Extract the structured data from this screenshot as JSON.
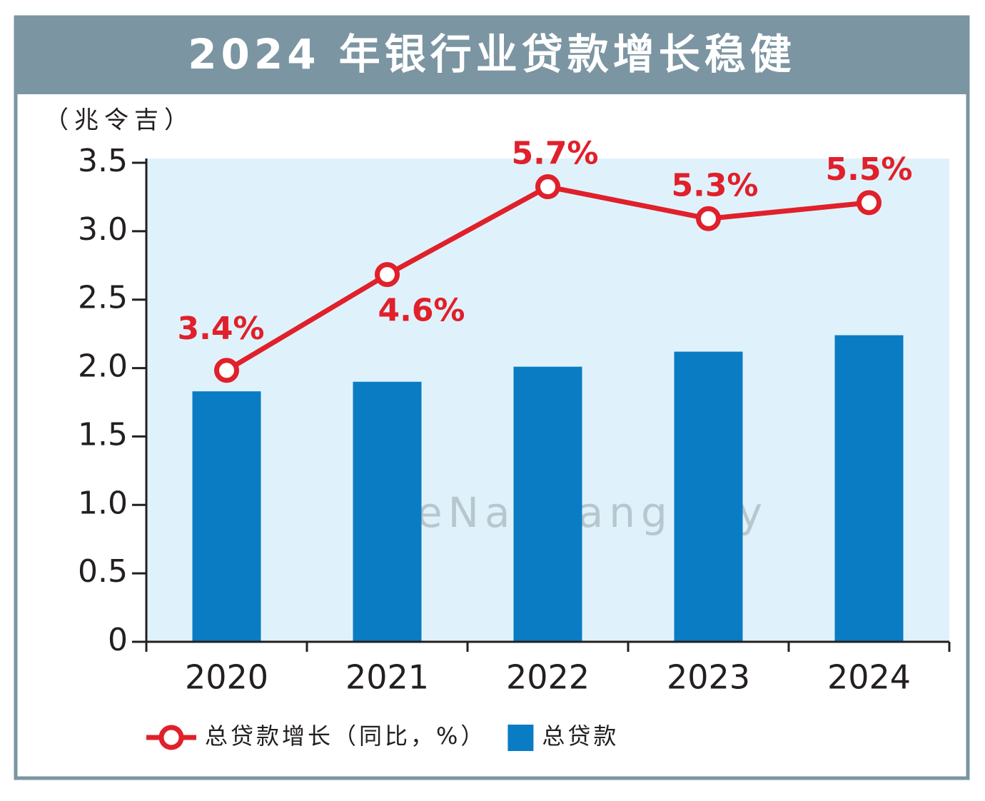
{
  "chart_data": {
    "type": "bar",
    "title": "2024 年银行业贷款增长稳健",
    "y_label": "（兆令吉）",
    "watermark": "eNanyang.my",
    "categories": [
      "2020",
      "2021",
      "2022",
      "2023",
      "2024"
    ],
    "series": [
      {
        "name": "总贷款增长（同比，%）",
        "type": "line",
        "axis": "y2",
        "color": "#e0202a",
        "values": [
          3.4,
          4.6,
          5.7,
          5.3,
          5.5
        ],
        "value_labels": [
          "3.4%",
          "4.6%",
          "5.7%",
          "5.3%",
          "5.5%"
        ]
      },
      {
        "name": "总贷款",
        "type": "bar",
        "color": "#0a7cc4",
        "values": [
          1.83,
          1.9,
          2.01,
          2.12,
          2.24
        ]
      }
    ],
    "ylim": [
      0,
      3.5
    ],
    "yticks": [
      0,
      0.5,
      {
        "value": 1,
        "label": "1.0"
      },
      1.5,
      {
        "value": 2,
        "label": "2.0"
      },
      2.5,
      {
        "value": 3,
        "label": "3.0"
      },
      3.5
    ],
    "y2lim": [
      0,
      6
    ],
    "plot_background": "#dff2fb"
  }
}
